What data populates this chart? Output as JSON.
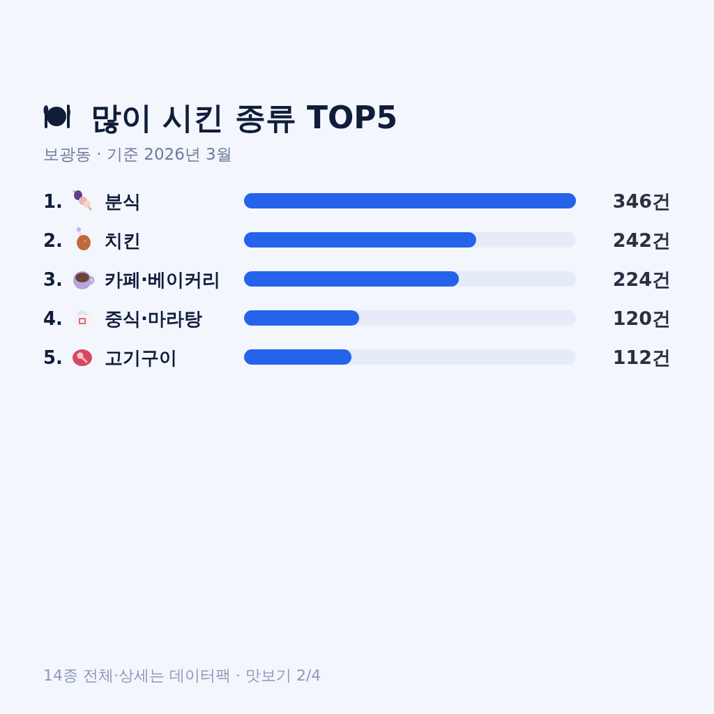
{
  "chart_data": {
    "type": "bar",
    "orientation": "horizontal",
    "title": "많이 시킨 종류 TOP5",
    "subtitle": "보광동 · 기준 2026년 3월",
    "categories": [
      "1. 분식",
      "2. 치킨",
      "3. 카페·베이커리",
      "4. 중식·마라탕",
      "5. 고기구이"
    ],
    "values": [
      346,
      242,
      224,
      120,
      112
    ],
    "color": "#2563eb",
    "value_labels": [
      "346건",
      "242건",
      "224건",
      "120건",
      "112건"
    ],
    "annotations": [
      "14종 전체·상세는 데이터팩 · 맛보기 2/4"
    ]
  }
}
